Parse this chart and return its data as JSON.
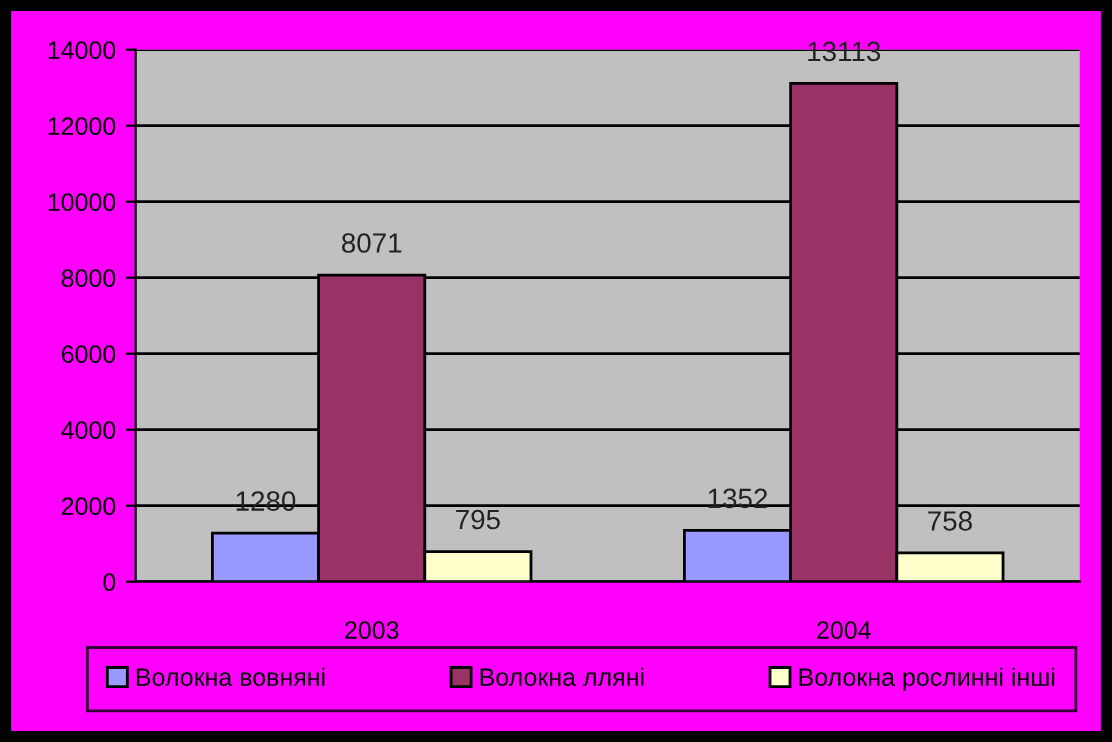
{
  "chart_data": {
    "type": "bar",
    "categories": [
      "2003",
      "2004"
    ],
    "series": [
      {
        "name": "Волокна вовняні",
        "color": "#9999ff",
        "values": [
          1280,
          1352
        ]
      },
      {
        "name": "Волокна лляні",
        "color": "#993366",
        "values": [
          8071,
          13113
        ]
      },
      {
        "name": "Волокна рослинні інші",
        "color": "#ffffcc",
        "values": [
          795,
          758
        ]
      }
    ],
    "ylim": [
      0,
      14000
    ],
    "yticks": [
      0,
      2000,
      4000,
      6000,
      8000,
      10000,
      12000,
      14000
    ],
    "grid": "y",
    "legend": "bottom",
    "data_labels": true
  }
}
